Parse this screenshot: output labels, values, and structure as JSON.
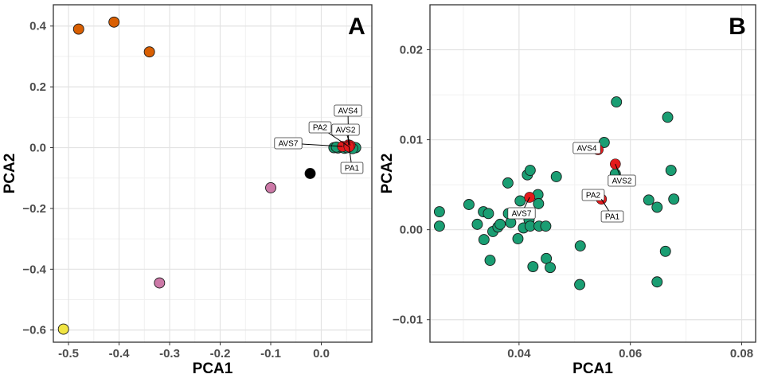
{
  "chart_data": [
    {
      "type": "scatter",
      "panel_label": "A",
      "xlabel": "PCA1",
      "ylabel": "PCA2",
      "xlim": [
        -0.53,
        0.1
      ],
      "ylim": [
        -0.64,
        0.47
      ],
      "xticks": [
        -0.5,
        -0.4,
        -0.3,
        -0.2,
        -0.1,
        0.0
      ],
      "xtick_labels": [
        "-0.5",
        "-0.4",
        "-0.3",
        "-0.2",
        "-0.1",
        "0.0"
      ],
      "yticks": [
        0.4,
        0.2,
        0.0,
        -0.2,
        -0.4,
        -0.6
      ],
      "ytick_labels": [
        "0.4",
        "0.2",
        "0.0",
        "−0.2",
        "−0.4",
        "−0.6"
      ],
      "grid": true,
      "colors": {
        "orange": "#d95f02",
        "pink": "#cc79a7",
        "yellow": "#f0e442",
        "black": "#000000",
        "green": "#1a9e73",
        "red": "#e41a1c"
      },
      "points": [
        {
          "x": -0.48,
          "y": 0.39,
          "color": "orange"
        },
        {
          "x": -0.41,
          "y": 0.413,
          "color": "orange"
        },
        {
          "x": -0.34,
          "y": 0.315,
          "color": "orange"
        },
        {
          "x": -0.1,
          "y": -0.132,
          "color": "pink"
        },
        {
          "x": -0.32,
          "y": -0.445,
          "color": "pink"
        },
        {
          "x": -0.51,
          "y": -0.597,
          "color": "yellow"
        },
        {
          "x": -0.022,
          "y": -0.085,
          "color": "black"
        },
        {
          "x": 0.025,
          "y": 0.0,
          "color": "green"
        },
        {
          "x": 0.033,
          "y": -0.001,
          "color": "green"
        },
        {
          "x": 0.04,
          "y": 0.001,
          "color": "green"
        },
        {
          "x": 0.046,
          "y": -0.002,
          "color": "green"
        },
        {
          "x": 0.051,
          "y": 0.0,
          "color": "green"
        },
        {
          "x": 0.057,
          "y": 0.002,
          "color": "green"
        },
        {
          "x": 0.064,
          "y": 0.001,
          "color": "green"
        },
        {
          "x": 0.068,
          "y": 0.0,
          "color": "green"
        },
        {
          "x": 0.03,
          "y": 0.002,
          "color": "green"
        },
        {
          "x": 0.062,
          "y": -0.003,
          "color": "green"
        },
        {
          "x": 0.042,
          "y": 0.004,
          "color": "red"
        },
        {
          "x": 0.054,
          "y": 0.009,
          "color": "red"
        },
        {
          "x": 0.057,
          "y": 0.007,
          "color": "red"
        },
        {
          "x": 0.055,
          "y": 0.003,
          "color": "red"
        }
      ],
      "labels": [
        {
          "text": "AVS4",
          "x": 0.054,
          "y": 0.009,
          "lx": 0.056,
          "ly": 0.098
        },
        {
          "text": "PA2",
          "x": 0.055,
          "y": 0.003,
          "lx": 0.02,
          "ly": 0.045
        },
        {
          "text": "AVS2",
          "x": 0.057,
          "y": 0.007,
          "lx": 0.056,
          "ly": 0.035
        },
        {
          "text": "AVS7",
          "x": 0.042,
          "y": 0.004,
          "lx": -0.035,
          "ly": -0.01
        },
        {
          "text": "PA1",
          "x": 0.055,
          "y": 0.003,
          "lx": 0.056,
          "ly": -0.089
        }
      ]
    },
    {
      "type": "scatter",
      "panel_label": "B",
      "xlabel": "PCA1",
      "ylabel": "PCA2",
      "xlim": [
        0.024,
        0.0825
      ],
      "ylim": [
        -0.0125,
        0.025
      ],
      "xticks": [
        0.04,
        0.06,
        0.08
      ],
      "xtick_labels": [
        "0.04",
        "0.06",
        "0.08"
      ],
      "yticks": [
        0.02,
        0.01,
        0.0,
        -0.01
      ],
      "ytick_labels": [
        "0.02",
        "0.01",
        "0.00",
        "−0.01"
      ],
      "grid": true,
      "colors": {
        "green": "#1a9e73",
        "red": "#e41a1c"
      },
      "points": [
        {
          "x": 0.0257,
          "y": 0.002,
          "color": "green"
        },
        {
          "x": 0.0257,
          "y": 0.0004,
          "color": "green"
        },
        {
          "x": 0.031,
          "y": 0.0028,
          "color": "green"
        },
        {
          "x": 0.0325,
          "y": 0.0006,
          "color": "green"
        },
        {
          "x": 0.0336,
          "y": 0.002,
          "color": "green"
        },
        {
          "x": 0.0345,
          "y": 0.0018,
          "color": "green"
        },
        {
          "x": 0.0337,
          "y": -0.0011,
          "color": "green"
        },
        {
          "x": 0.0348,
          "y": -0.0034,
          "color": "green"
        },
        {
          "x": 0.0353,
          "y": -0.0002,
          "color": "green"
        },
        {
          "x": 0.0362,
          "y": 0.0003,
          "color": "green"
        },
        {
          "x": 0.0366,
          "y": 0.0006,
          "color": "green"
        },
        {
          "x": 0.038,
          "y": 0.0052,
          "color": "green"
        },
        {
          "x": 0.0381,
          "y": 0.0018,
          "color": "green"
        },
        {
          "x": 0.0385,
          "y": 0.0008,
          "color": "green"
        },
        {
          "x": 0.0398,
          "y": -0.001,
          "color": "green"
        },
        {
          "x": 0.0402,
          "y": 0.0032,
          "color": "green"
        },
        {
          "x": 0.0408,
          "y": 0.0002,
          "color": "green"
        },
        {
          "x": 0.0415,
          "y": 0.0061,
          "color": "green"
        },
        {
          "x": 0.042,
          "y": 0.0066,
          "color": "green"
        },
        {
          "x": 0.0418,
          "y": 0.0011,
          "color": "green"
        },
        {
          "x": 0.042,
          "y": 0.0004,
          "color": "green"
        },
        {
          "x": 0.0425,
          "y": -0.0041,
          "color": "green"
        },
        {
          "x": 0.0434,
          "y": 0.0039,
          "color": "green"
        },
        {
          "x": 0.0435,
          "y": 0.0029,
          "color": "green"
        },
        {
          "x": 0.0436,
          "y": 0.0004,
          "color": "green"
        },
        {
          "x": 0.0448,
          "y": 0.0004,
          "color": "green"
        },
        {
          "x": 0.0449,
          "y": -0.0032,
          "color": "green"
        },
        {
          "x": 0.0456,
          "y": -0.0042,
          "color": "green"
        },
        {
          "x": 0.0467,
          "y": 0.0059,
          "color": "green"
        },
        {
          "x": 0.051,
          "y": -0.0018,
          "color": "green"
        },
        {
          "x": 0.0509,
          "y": -0.0061,
          "color": "green"
        },
        {
          "x": 0.0553,
          "y": 0.0097,
          "color": "green"
        },
        {
          "x": 0.0575,
          "y": 0.0142,
          "color": "green"
        },
        {
          "x": 0.0573,
          "y": 0.0062,
          "color": "green"
        },
        {
          "x": 0.0633,
          "y": 0.0033,
          "color": "green"
        },
        {
          "x": 0.0648,
          "y": 0.0025,
          "color": "green"
        },
        {
          "x": 0.0648,
          "y": -0.0058,
          "color": "green"
        },
        {
          "x": 0.0663,
          "y": -0.0024,
          "color": "green"
        },
        {
          "x": 0.0667,
          "y": 0.0125,
          "color": "green"
        },
        {
          "x": 0.0673,
          "y": 0.0066,
          "color": "green"
        },
        {
          "x": 0.0678,
          "y": 0.0034,
          "color": "green"
        },
        {
          "x": 0.0419,
          "y": 0.0036,
          "color": "red"
        },
        {
          "x": 0.0542,
          "y": 0.0089,
          "color": "red"
        },
        {
          "x": 0.0573,
          "y": 0.0073,
          "color": "red"
        },
        {
          "x": 0.0548,
          "y": 0.0034,
          "color": "red"
        }
      ],
      "labels": [
        {
          "text": "AVS4",
          "x": 0.0542,
          "y": 0.0089,
          "lx": 0.0524,
          "ly": 0.0099
        },
        {
          "text": "AVS2",
          "x": 0.0573,
          "y": 0.0073,
          "lx": 0.0582,
          "ly": 0.0061
        },
        {
          "text": "PA2",
          "x": 0.0548,
          "y": 0.0034,
          "lx": 0.0524,
          "ly": 0.0046
        },
        {
          "text": "PA1",
          "x": 0.0548,
          "y": 0.0034,
          "lx": 0.0562,
          "ly": 0.002
        },
        {
          "text": "AVS7",
          "x": 0.0419,
          "y": 0.0036,
          "lx": 0.0382,
          "ly": 0.0025
        }
      ]
    }
  ]
}
